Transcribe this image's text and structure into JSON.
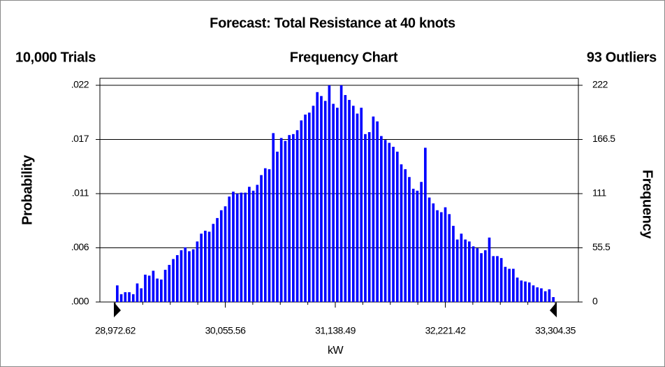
{
  "chart_data": {
    "type": "bar",
    "title": "Forecast: Total Resistance at 40 knots",
    "trials": "10,000 Trials",
    "subtitle": "Frequency Chart",
    "outliers": "93 Outliers",
    "ylabel": "Probability",
    "y2label": "Frequency",
    "xlabel": "kW",
    "color": "#0000ff",
    "axis": "y2",
    "categories": [
      null,
      null,
      null,
      null,
      null,
      null,
      null,
      null,
      null,
      null,
      null,
      null,
      null,
      null,
      null,
      null,
      null,
      null,
      null,
      null,
      null,
      null,
      null,
      null,
      null,
      null,
      null,
      null,
      null,
      null,
      null,
      null,
      null,
      null,
      null,
      null,
      null,
      null,
      null,
      null,
      null,
      null,
      null,
      null,
      null,
      null,
      null,
      null,
      null,
      null,
      null,
      null,
      null,
      null,
      null,
      null,
      null,
      null,
      null,
      null,
      null,
      null,
      null,
      null,
      null,
      null,
      null,
      null,
      null,
      null,
      null,
      null,
      null,
      null,
      null,
      null,
      null,
      null,
      null,
      null,
      null,
      null,
      null,
      null,
      null,
      null,
      null,
      null,
      null,
      null,
      null,
      null,
      null,
      null,
      null,
      null,
      null,
      null,
      null,
      null,
      null,
      null,
      null,
      null,
      null,
      null,
      null,
      null,
      null,
      null
    ],
    "values": [
      17,
      8,
      10,
      10,
      8,
      19,
      14,
      28,
      27,
      32,
      24,
      23,
      33,
      38,
      44,
      48,
      53,
      56,
      52,
      54,
      62,
      70,
      73,
      72,
      80,
      86,
      94,
      98,
      108,
      113,
      111,
      112,
      112,
      118,
      114,
      120,
      130,
      137,
      136,
      173,
      154,
      168,
      165,
      171,
      172,
      176,
      186,
      192,
      194,
      201,
      215,
      211,
      206,
      222,
      203,
      199,
      222,
      212,
      207,
      201,
      193,
      199,
      172,
      174,
      190,
      185,
      170,
      166,
      163,
      159,
      154,
      141,
      136,
      128,
      116,
      114,
      123,
      158,
      107,
      101,
      94,
      92,
      97,
      90,
      78,
      64,
      70,
      64,
      62,
      57,
      55,
      50,
      53,
      66,
      47,
      47,
      45,
      36,
      34,
      34,
      25,
      22,
      21,
      20,
      17,
      15,
      14,
      11,
      13,
      5
    ],
    "xlim": [
      28972.62,
      33304.35
    ],
    "xticks": [
      {
        "value": 28972.62,
        "label": "28,972.62"
      },
      {
        "value": 30055.56,
        "label": "30,055.56"
      },
      {
        "value": 31138.49,
        "label": "31,138.49"
      },
      {
        "value": 32221.42,
        "label": "32,221.42"
      },
      {
        "value": 33304.35,
        "label": "33,304.35"
      }
    ],
    "ylim": [
      0,
      0.0222
    ],
    "yticks": [
      {
        "value": 0,
        "label": ".000"
      },
      {
        "value": 0.00555,
        "label": ".006"
      },
      {
        "value": 0.0111,
        "label": ".011"
      },
      {
        "value": 0.01665,
        "label": ".017"
      },
      {
        "value": 0.0222,
        "label": ".022"
      }
    ],
    "y2lim": [
      0,
      222
    ],
    "y2ticks": [
      0,
      55.5,
      111,
      166.5,
      222
    ],
    "grid": true
  }
}
